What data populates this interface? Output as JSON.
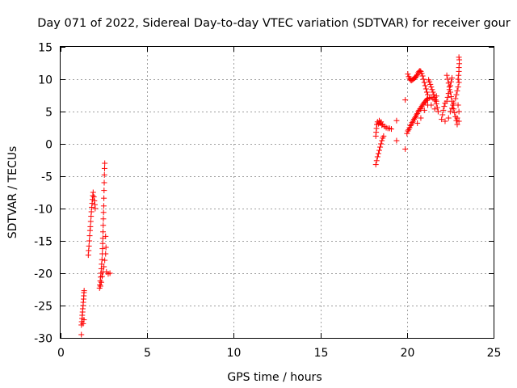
{
  "chart_data": {
    "type": "scatter",
    "title": "Day 071 of 2022, Sidereal Day-to-day VTEC variation (SDTVAR) for receiver gour",
    "xlabel": "GPS time / hours",
    "ylabel": "SDTVAR / TECUs",
    "xlim": [
      0,
      25
    ],
    "ylim": [
      -30,
      15
    ],
    "xticks": [
      0,
      5,
      10,
      15,
      20,
      25
    ],
    "yticks": [
      -30,
      -25,
      -20,
      -15,
      -10,
      -5,
      0,
      5,
      10,
      15
    ],
    "grid": true,
    "marker": "+",
    "color": "#ff0000",
    "series": [
      {
        "name": "SDTVAR",
        "points": [
          [
            1.2,
            -29.5
          ],
          [
            1.2,
            -28.0
          ],
          [
            1.22,
            -27.5
          ],
          [
            1.24,
            -27.0
          ],
          [
            1.25,
            -26.5
          ],
          [
            1.27,
            -26.0
          ],
          [
            1.28,
            -25.5
          ],
          [
            1.3,
            -25.0
          ],
          [
            1.31,
            -24.5
          ],
          [
            1.33,
            -24.0
          ],
          [
            1.34,
            -23.5
          ],
          [
            1.35,
            -23.0
          ],
          [
            1.36,
            -22.7
          ],
          [
            1.3,
            -27.8
          ],
          [
            1.35,
            -27.2
          ],
          [
            1.6,
            -17.2
          ],
          [
            1.62,
            -16.5
          ],
          [
            1.64,
            -15.8
          ],
          [
            1.66,
            -15.0
          ],
          [
            1.68,
            -14.2
          ],
          [
            1.7,
            -13.4
          ],
          [
            1.72,
            -12.8
          ],
          [
            1.74,
            -12.0
          ],
          [
            1.76,
            -11.2
          ],
          [
            1.78,
            -10.5
          ],
          [
            1.8,
            -9.8
          ],
          [
            1.82,
            -9.2
          ],
          [
            1.84,
            -8.6
          ],
          [
            1.86,
            -8.0
          ],
          [
            1.88,
            -7.5
          ],
          [
            1.92,
            -8.2
          ],
          [
            1.95,
            -8.8
          ],
          [
            1.98,
            -9.4
          ],
          [
            2.0,
            -10.0
          ],
          [
            2.25,
            -22.3
          ],
          [
            2.27,
            -21.8
          ],
          [
            2.29,
            -21.2
          ],
          [
            2.31,
            -20.6
          ],
          [
            2.33,
            -20.0
          ],
          [
            2.35,
            -19.3
          ],
          [
            2.37,
            -18.6
          ],
          [
            2.39,
            -17.9
          ],
          [
            2.41,
            -17.0
          ],
          [
            2.42,
            -16.2
          ],
          [
            2.43,
            -15.4
          ],
          [
            2.44,
            -14.6
          ],
          [
            2.45,
            -13.6
          ],
          [
            2.46,
            -12.6
          ],
          [
            2.47,
            -11.6
          ],
          [
            2.48,
            -10.6
          ],
          [
            2.49,
            -9.6
          ],
          [
            2.5,
            -8.4
          ],
          [
            2.51,
            -7.2
          ],
          [
            2.52,
            -6.0
          ],
          [
            2.53,
            -4.8
          ],
          [
            2.54,
            -3.8
          ],
          [
            2.55,
            -3.0
          ],
          [
            2.3,
            -22.0
          ],
          [
            2.35,
            -21.4
          ],
          [
            2.4,
            -20.5
          ],
          [
            2.45,
            -19.8
          ],
          [
            2.5,
            -19.0
          ],
          [
            2.55,
            -18.0
          ],
          [
            2.6,
            -17.0
          ],
          [
            2.62,
            -16.0
          ],
          [
            2.6,
            -14.3
          ],
          [
            2.65,
            -19.8
          ],
          [
            2.75,
            -20.1
          ],
          [
            2.85,
            -20.0
          ],
          [
            18.2,
            -3.2
          ],
          [
            18.25,
            -2.6
          ],
          [
            18.3,
            -2.0
          ],
          [
            18.35,
            -1.5
          ],
          [
            18.4,
            -1.0
          ],
          [
            18.45,
            -0.5
          ],
          [
            18.5,
            0.0
          ],
          [
            18.55,
            0.5
          ],
          [
            18.6,
            0.9
          ],
          [
            18.65,
            1.2
          ],
          [
            18.2,
            1.2
          ],
          [
            18.22,
            1.8
          ],
          [
            18.24,
            2.4
          ],
          [
            18.26,
            3.0
          ],
          [
            18.3,
            3.4
          ],
          [
            18.4,
            3.6
          ],
          [
            18.5,
            3.4
          ],
          [
            18.6,
            3.0
          ],
          [
            18.7,
            2.7
          ],
          [
            18.8,
            2.5
          ],
          [
            18.9,
            2.4
          ],
          [
            19.0,
            2.4
          ],
          [
            19.1,
            2.3
          ],
          [
            18.35,
            3.1
          ],
          [
            18.45,
            3.2
          ],
          [
            18.55,
            2.9
          ],
          [
            19.4,
            3.6
          ],
          [
            19.4,
            0.5
          ],
          [
            19.9,
            6.8
          ],
          [
            19.9,
            -0.8
          ],
          [
            20.0,
            1.6
          ],
          [
            20.05,
            2.0
          ],
          [
            20.1,
            2.2
          ],
          [
            20.15,
            2.5
          ],
          [
            20.2,
            2.8
          ],
          [
            20.25,
            3.0
          ],
          [
            20.3,
            3.3
          ],
          [
            20.35,
            3.5
          ],
          [
            20.4,
            3.8
          ],
          [
            20.45,
            4.0
          ],
          [
            20.5,
            4.2
          ],
          [
            20.55,
            4.5
          ],
          [
            20.6,
            4.7
          ],
          [
            20.65,
            5.0
          ],
          [
            20.7,
            5.2
          ],
          [
            20.75,
            5.4
          ],
          [
            20.8,
            5.5
          ],
          [
            20.85,
            5.8
          ],
          [
            20.9,
            6.0
          ],
          [
            20.95,
            6.2
          ],
          [
            21.0,
            6.4
          ],
          [
            21.05,
            6.5
          ],
          [
            21.1,
            6.7
          ],
          [
            21.15,
            6.9
          ],
          [
            21.2,
            7.0
          ],
          [
            21.3,
            7.1
          ],
          [
            21.4,
            7.2
          ],
          [
            21.5,
            7.0
          ],
          [
            21.6,
            6.8
          ],
          [
            21.7,
            6.6
          ],
          [
            20.6,
            3.2
          ],
          [
            20.8,
            4.0
          ],
          [
            21.0,
            5.2
          ],
          [
            21.2,
            6.0
          ],
          [
            21.4,
            6.0
          ],
          [
            21.6,
            5.4
          ],
          [
            21.7,
            7.4
          ],
          [
            20.05,
            10.8
          ],
          [
            20.1,
            10.4
          ],
          [
            20.15,
            10.1
          ],
          [
            20.2,
            9.9
          ],
          [
            20.25,
            9.8
          ],
          [
            20.3,
            9.9
          ],
          [
            20.35,
            10.0
          ],
          [
            20.4,
            10.1
          ],
          [
            20.45,
            10.2
          ],
          [
            20.5,
            10.3
          ],
          [
            20.55,
            10.5
          ],
          [
            20.6,
            10.7
          ],
          [
            20.65,
            11.0
          ],
          [
            20.7,
            11.2
          ],
          [
            20.75,
            11.3
          ],
          [
            20.8,
            11.2
          ],
          [
            20.85,
            10.9
          ],
          [
            20.9,
            10.5
          ],
          [
            20.95,
            10.0
          ],
          [
            21.0,
            9.5
          ],
          [
            21.05,
            9.0
          ],
          [
            21.1,
            8.5
          ],
          [
            21.15,
            8.0
          ],
          [
            21.2,
            7.6
          ],
          [
            21.25,
            9.9
          ],
          [
            21.3,
            9.6
          ],
          [
            21.35,
            9.2
          ],
          [
            21.4,
            8.8
          ],
          [
            21.45,
            8.4
          ],
          [
            21.5,
            8.0
          ],
          [
            21.55,
            7.6
          ],
          [
            21.6,
            7.2
          ],
          [
            21.65,
            6.8
          ],
          [
            21.7,
            6.2
          ],
          [
            21.75,
            5.6
          ],
          [
            21.8,
            5.0
          ],
          [
            22.0,
            3.8
          ],
          [
            22.05,
            4.5
          ],
          [
            22.1,
            5.2
          ],
          [
            22.15,
            5.8
          ],
          [
            22.2,
            6.3
          ],
          [
            22.3,
            6.6
          ],
          [
            22.35,
            7.2
          ],
          [
            22.4,
            7.8
          ],
          [
            22.45,
            8.4
          ],
          [
            22.5,
            9.0
          ],
          [
            22.55,
            9.6
          ],
          [
            22.6,
            10.2
          ],
          [
            22.3,
            10.6
          ],
          [
            22.35,
            10.0
          ],
          [
            22.4,
            9.4
          ],
          [
            22.45,
            8.8
          ],
          [
            22.5,
            8.0
          ],
          [
            22.55,
            7.3
          ],
          [
            22.6,
            6.6
          ],
          [
            22.65,
            6.0
          ],
          [
            22.7,
            5.4
          ],
          [
            22.75,
            4.8
          ],
          [
            22.8,
            4.2
          ],
          [
            22.85,
            3.6
          ],
          [
            22.9,
            3.0
          ],
          [
            22.2,
            3.5
          ],
          [
            22.4,
            4.0
          ],
          [
            22.5,
            5.0
          ],
          [
            22.6,
            5.5
          ],
          [
            22.7,
            6.3
          ],
          [
            22.8,
            7.0
          ],
          [
            22.85,
            7.6
          ],
          [
            22.9,
            8.2
          ],
          [
            22.95,
            8.8
          ],
          [
            23.0,
            9.5
          ],
          [
            22.95,
            10.0
          ],
          [
            22.98,
            10.6
          ],
          [
            23.0,
            11.2
          ],
          [
            23.0,
            11.8
          ],
          [
            23.02,
            12.4
          ],
          [
            23.02,
            13.0
          ],
          [
            23.0,
            13.4
          ],
          [
            22.9,
            4.0
          ],
          [
            23.0,
            3.5
          ],
          [
            23.0,
            5.0
          ],
          [
            22.95,
            6.0
          ]
        ]
      }
    ]
  }
}
